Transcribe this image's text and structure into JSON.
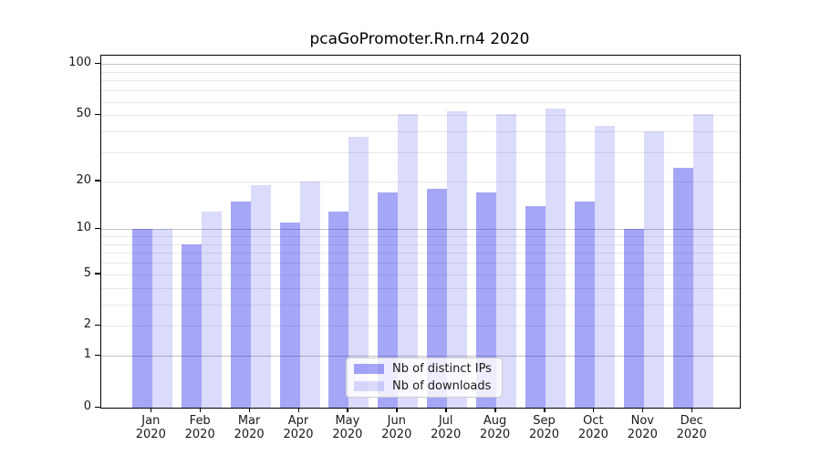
{
  "chart_data": {
    "type": "bar",
    "title": "pcaGoPromoter.Rn.rn4 2020",
    "categories": [
      "Jan",
      "Feb",
      "Mar",
      "Apr",
      "May",
      "Jun",
      "Jul",
      "Aug",
      "Sep",
      "Oct",
      "Nov",
      "Dec"
    ],
    "x_year": "2020",
    "series": [
      {
        "name": "Nb of distinct IPs",
        "values": [
          10,
          8,
          15,
          11,
          13,
          17,
          18,
          17,
          14,
          15,
          10,
          24
        ],
        "color": "rgba(0,0,230,0.35)"
      },
      {
        "name": "Nb of downloads",
        "values": [
          10,
          13,
          19,
          20,
          37,
          51,
          53,
          51,
          55,
          43,
          40,
          51
        ],
        "color": "rgba(0,0,230,0.14)"
      }
    ],
    "yscale": "log1p",
    "ylim": [
      0,
      113
    ],
    "yticks": [
      0,
      1,
      2,
      5,
      10,
      20,
      50,
      100
    ],
    "grid_major": [
      1,
      10,
      100
    ],
    "grid_minor": [
      2,
      3,
      4,
      5,
      6,
      7,
      8,
      9,
      20,
      30,
      40,
      50,
      60,
      70,
      80,
      90
    ],
    "grid": true,
    "legend_position": "lower center",
    "xlabel": "",
    "ylabel": ""
  },
  "colors": {
    "background": "#ffffff",
    "axis": "#000000",
    "grid_major": "#c2c2c2",
    "grid_minor": "#e9e9e9",
    "text": "#1a1a1a",
    "legend_bg": "rgba(255,255,255,0.8)",
    "legend_border": "#cccccc"
  }
}
